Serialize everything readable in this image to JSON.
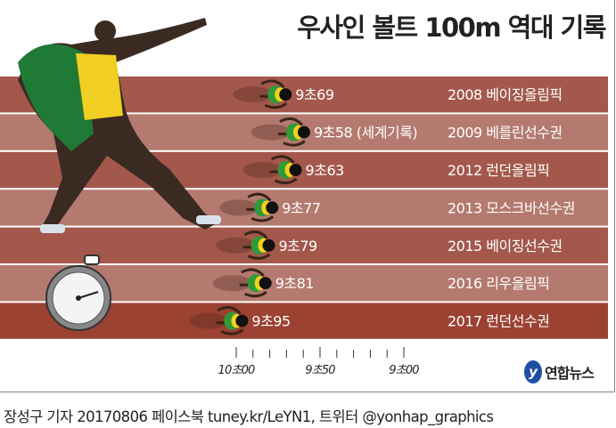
{
  "title": "우사인 볼트 100m 역대 기록",
  "chart_data": {
    "type": "bar",
    "orientation": "horizontal",
    "axis": "reversed time (faster to the right)",
    "xlim": [
      10.0,
      9.0
    ],
    "ticks": [
      {
        "value": 10.0,
        "label": "10초00"
      },
      {
        "value": 9.5,
        "label": "9초50"
      },
      {
        "value": 9.0,
        "label": "9초00"
      }
    ],
    "minor_tick_step": 0.1,
    "records": [
      {
        "time": 9.69,
        "label": "9초69",
        "event": "2008 베이징올림픽"
      },
      {
        "time": 9.58,
        "label": "9초58 (세계기록)",
        "event": "2009 베를린선수권"
      },
      {
        "time": 9.63,
        "label": "9초63",
        "event": "2012 런던올림픽"
      },
      {
        "time": 9.77,
        "label": "9초77",
        "event": "2013 모스크바선수권"
      },
      {
        "time": 9.79,
        "label": "9초79",
        "event": "2015 베이징선수권"
      },
      {
        "time": 9.81,
        "label": "9초81",
        "event": "2016 리우올림픽"
      },
      {
        "time": 9.95,
        "label": "9초95",
        "event": "2017 런던선수권"
      }
    ],
    "colors": {
      "row_dark": "#a3584b",
      "row_light": "#b47a6f",
      "row_last": "#9b4233",
      "runner_green": "#2e9a3a",
      "runner_yellow": "#f2d21b"
    }
  },
  "logo": {
    "mark": "y",
    "text": "연합뉴스"
  },
  "footer": "장성구 기자 20170806  페이스북 tuney.kr/LeYN1, 트위터 @yonhap_graphics"
}
